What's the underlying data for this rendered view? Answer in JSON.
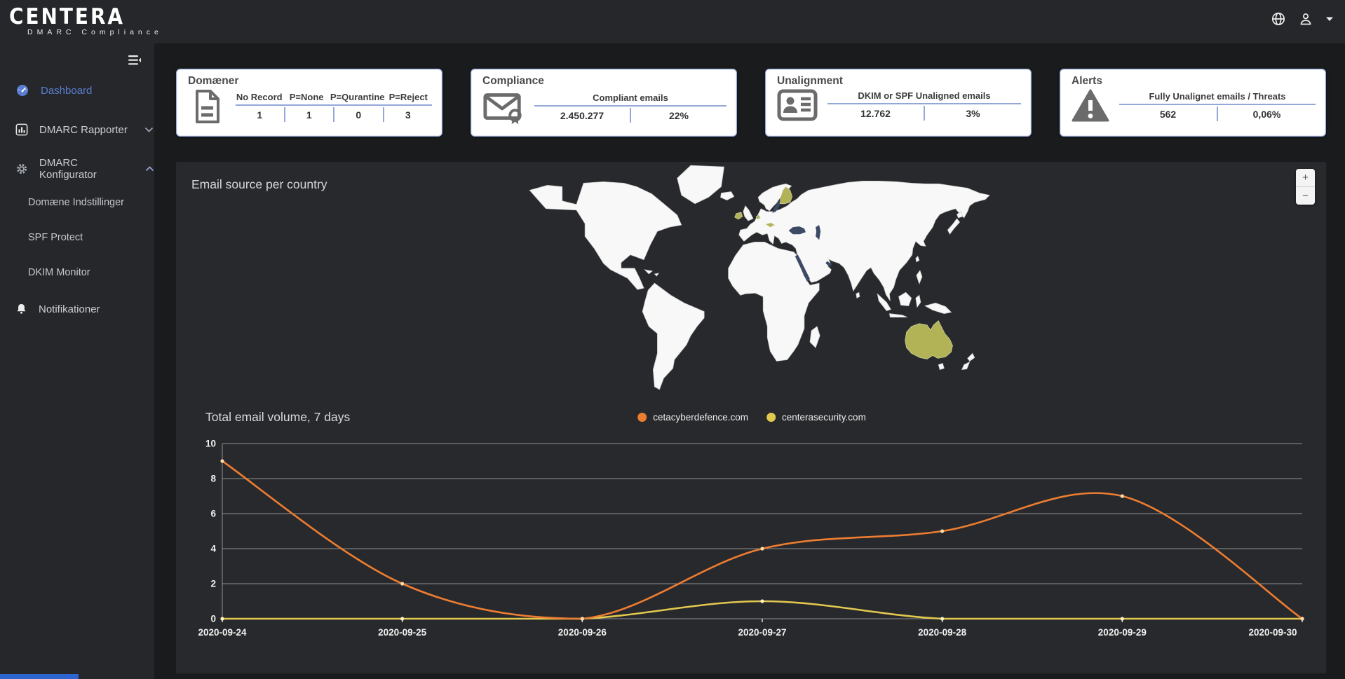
{
  "brand": {
    "name": "CENTERA",
    "tagline": "DMARC Compliance"
  },
  "topbar": {
    "icons": [
      {
        "name": "globe-icon"
      },
      {
        "name": "user-icon"
      },
      {
        "name": "caret-down-icon"
      }
    ]
  },
  "sidebar": {
    "items": [
      {
        "label": "Dashboard",
        "icon": "dashboard",
        "active": true
      },
      {
        "label": "DMARC Rapporter",
        "icon": "barchart",
        "chevron": "down"
      },
      {
        "label": "DMARC Konfigurator",
        "icon": "gear",
        "chevron": "up",
        "children": [
          "Domæne Indstillinger",
          "SPF Protect",
          "DKIM Monitor"
        ]
      },
      {
        "label": "Notifikationer",
        "icon": "bell"
      }
    ]
  },
  "cards": [
    {
      "title": "Domæner",
      "icon": "document",
      "headers": [
        "No Record",
        "P=None",
        "P=Qurantine",
        "P=Reject"
      ],
      "values": [
        "1",
        "1",
        "0",
        "3"
      ]
    },
    {
      "title": "Compliance",
      "icon": "envelope",
      "headers": [
        "Compliant emails"
      ],
      "values": [
        "2.450.277",
        "22%"
      ]
    },
    {
      "title": "Unalignment",
      "icon": "idcard",
      "headers": [
        "DKIM or SPF Unaligned emails"
      ],
      "values": [
        "12.762",
        "3%"
      ]
    },
    {
      "title": "Alerts",
      "icon": "warning",
      "headers": [
        "Fully Unalignet emails / Threats"
      ],
      "values": [
        "562",
        "0,06%"
      ]
    }
  ],
  "map": {
    "title": "Email source per country",
    "zoom_in": "+",
    "zoom_out": "−",
    "land_color": "#f8f8f8",
    "highlight_color": "#b2b257",
    "sea_color": "#3d4a66",
    "highlighted_countries": [
      "Finland",
      "Ireland",
      "Netherlands",
      "Austria",
      "Australia"
    ]
  },
  "chart": {
    "title": "Total email volume, 7 days"
  },
  "chart_data": {
    "type": "line",
    "x": [
      "2020-09-24",
      "2020-09-25",
      "2020-09-26",
      "2020-09-27",
      "2020-09-28",
      "2020-09-29",
      "2020-09-30"
    ],
    "series": [
      {
        "name": "cetacyberdefence.com",
        "color": "#ed7d31",
        "dot_color": "#ffdca8",
        "values": [
          9,
          2,
          0,
          4,
          5,
          7,
          0
        ]
      },
      {
        "name": "centerasecurity.com",
        "color": "#e3c84f",
        "dot_color": "#fff3c4",
        "values": [
          0,
          0,
          0,
          1,
          0,
          0,
          0
        ]
      }
    ],
    "ylim": [
      0,
      10
    ],
    "yticks": [
      0,
      2,
      4,
      6,
      8,
      10
    ],
    "grid": true,
    "legend_position": "top-center"
  }
}
